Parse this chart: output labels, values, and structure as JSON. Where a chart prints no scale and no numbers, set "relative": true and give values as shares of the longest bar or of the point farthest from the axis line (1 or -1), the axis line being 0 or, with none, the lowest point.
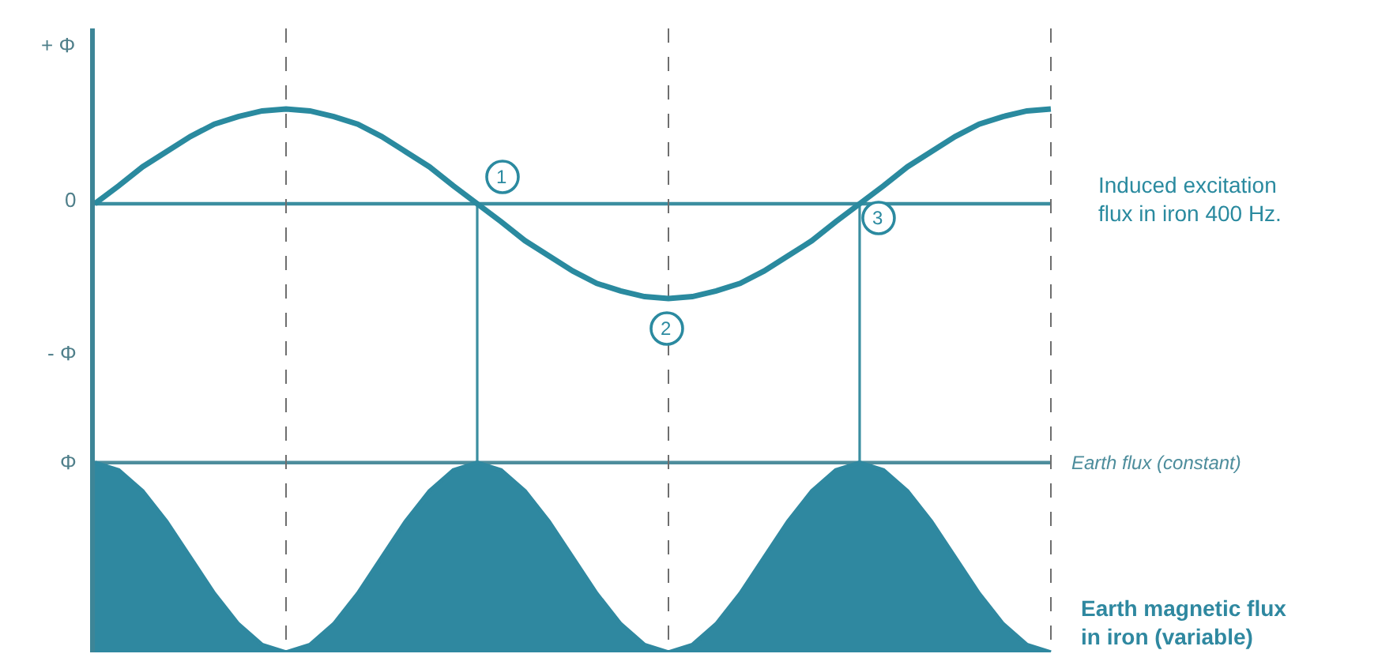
{
  "chart_data": [
    {
      "type": "line",
      "relative": true,
      "grid": "x",
      "categories": [
        null,
        null,
        null,
        null,
        null,
        null,
        null,
        null,
        null,
        null,
        null,
        null,
        null,
        null,
        null,
        null,
        null,
        null,
        null,
        null,
        null,
        null,
        null,
        null,
        null,
        null,
        null,
        null,
        null,
        null,
        null,
        null,
        null,
        null,
        null,
        null,
        null,
        null,
        null,
        null,
        null
      ],
      "series": [
        {
          "name": "Induced excitation flux in iron 400 Hz.",
          "color": "#2a8a9f",
          "values": [
            0,
            0.19,
            0.39,
            0.55,
            0.71,
            0.84,
            0.92,
            0.98,
            1,
            0.98,
            0.92,
            0.84,
            0.71,
            0.55,
            0.39,
            0.19,
            0,
            -0.19,
            -0.39,
            -0.55,
            -0.71,
            -0.84,
            -0.92,
            -0.98,
            -1,
            -0.98,
            -0.92,
            -0.84,
            -0.71,
            -0.55,
            -0.39,
            -0.19,
            0,
            0.19,
            0.39,
            0.55,
            0.71,
            0.84,
            0.92,
            0.98,
            1
          ]
        }
      ],
      "ref_lines": [
        {
          "axis": "y",
          "value": 0,
          "color": "#3b8ea0"
        }
      ],
      "annotations": [
        {
          "text": "1",
          "y": 0
        },
        {
          "text": "2",
          "y": -1
        },
        {
          "text": "3",
          "y": 0
        },
        "+ Φ",
        "0",
        "- Φ"
      ]
    },
    {
      "type": "area",
      "relative": true,
      "grid": "x",
      "categories": [
        null,
        null,
        null,
        null,
        null,
        null,
        null,
        null,
        null,
        null,
        null,
        null,
        null,
        null,
        null,
        null,
        null,
        null,
        null,
        null,
        null,
        null,
        null,
        null,
        null,
        null,
        null,
        null,
        null,
        null,
        null,
        null,
        null,
        null,
        null,
        null,
        null,
        null,
        null,
        null,
        null
      ],
      "series": [
        {
          "name": "Earth magnetic flux in iron (variable)",
          "color": "#2f88a0",
          "values": [
            1,
            0.96,
            0.85,
            0.69,
            0.5,
            0.31,
            0.15,
            0.04,
            0,
            0.04,
            0.15,
            0.31,
            0.5,
            0.69,
            0.85,
            0.96,
            1,
            0.96,
            0.85,
            0.69,
            0.5,
            0.31,
            0.15,
            0.04,
            0,
            0.04,
            0.15,
            0.31,
            0.5,
            0.69,
            0.85,
            0.96,
            1,
            0.96,
            0.85,
            0.69,
            0.5,
            0.31,
            0.15,
            0.04,
            0
          ]
        }
      ],
      "ref_lines": [
        {
          "axis": "y",
          "value": 1,
          "label": "Earth flux (constant)",
          "color": "#4d8d9c"
        }
      ],
      "annotations": [
        "Φ"
      ]
    }
  ]
}
